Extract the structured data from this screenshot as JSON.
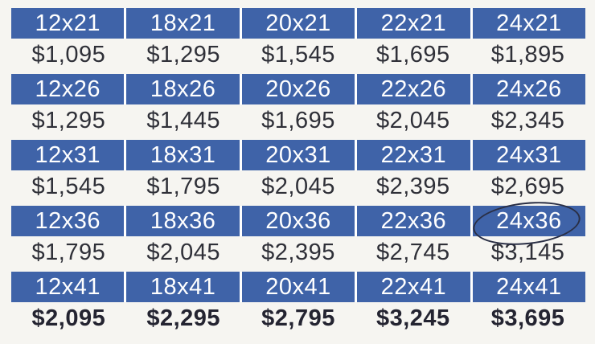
{
  "rows": [
    {
      "sizes": [
        "12x21",
        "18x21",
        "20x21",
        "22x21",
        "24x21"
      ],
      "prices": [
        "$1,095",
        "$1,295",
        "$1,545",
        "$1,695",
        "$1,895"
      ]
    },
    {
      "sizes": [
        "12x26",
        "18x26",
        "20x26",
        "22x26",
        "24x26"
      ],
      "prices": [
        "$1,295",
        "$1,445",
        "$1,695",
        "$2,045",
        "$2,345"
      ]
    },
    {
      "sizes": [
        "12x31",
        "18x31",
        "20x31",
        "22x31",
        "24x31"
      ],
      "prices": [
        "$1,545",
        "$1,795",
        "$2,045",
        "$2,395",
        "$2,695"
      ]
    },
    {
      "sizes": [
        "12x36",
        "18x36",
        "20x36",
        "22x36",
        "24x36"
      ],
      "prices": [
        "$1,795",
        "$2,045",
        "$2,395",
        "$2,745",
        "$3,145"
      ]
    },
    {
      "sizes": [
        "12x41",
        "18x41",
        "20x41",
        "22x41",
        "24x41"
      ],
      "prices": [
        "$2,095",
        "$2,295",
        "$2,795",
        "$3,245",
        "$3,695"
      ]
    }
  ],
  "colors": {
    "header_blue": "#3f63a8",
    "header_text": "#ffffff",
    "price_text": "#2f3038"
  },
  "annotation": "hand-drawn-circle"
}
